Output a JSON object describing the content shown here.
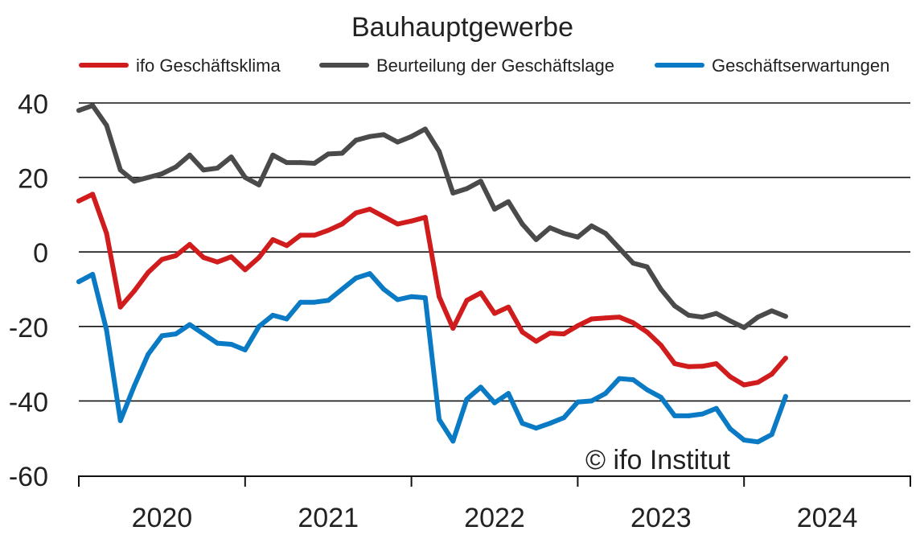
{
  "chart_data": {
    "type": "line",
    "title": "Bauhauptgewerbe",
    "watermark": "© ifo Institut",
    "ylim": [
      -60,
      40
    ],
    "yticks": [
      40,
      20,
      0,
      -20,
      -40,
      -60
    ],
    "year_labels": [
      "2020",
      "2021",
      "2022",
      "2023",
      "2024"
    ],
    "x_start": "2019-12",
    "xlim": [
      "2019-12",
      "2024-12"
    ],
    "grid": true,
    "legend_position": "top",
    "series": [
      {
        "name": "ifo Geschäftsklima",
        "color": "#d01c1c",
        "values": [
          13.7,
          15.5,
          5.0,
          -14.8,
          -10.5,
          -5.5,
          -2.0,
          -1.0,
          2.0,
          -1.5,
          -2.7,
          -1.3,
          -4.8,
          -1.5,
          3.3,
          1.7,
          4.5,
          4.5,
          5.8,
          7.5,
          10.5,
          11.5,
          9.5,
          7.5,
          8.3,
          9.3,
          -12.0,
          -20.5,
          -13.0,
          -11.0,
          -16.5,
          -14.8,
          -21.5,
          -24.0,
          -21.8,
          -22.0,
          -19.8,
          -18.0,
          -17.7,
          -17.5,
          -19.0,
          -21.5,
          -25.0,
          -30.0,
          -30.8,
          -30.7,
          -30.0,
          -33.5,
          -35.7,
          -35.0,
          -32.8,
          -28.5
        ]
      },
      {
        "name": "Beurteilung der Geschäftslage",
        "color": "#4a4a4a",
        "values": [
          38.0,
          39.3,
          34.0,
          22.0,
          19.0,
          20.0,
          21.0,
          22.8,
          26.0,
          22.0,
          22.5,
          25.5,
          20.0,
          18.0,
          26.0,
          24.0,
          24.0,
          23.8,
          26.3,
          26.5,
          30.0,
          31.0,
          31.5,
          29.5,
          31.0,
          33.0,
          27.0,
          15.8,
          17.0,
          19.0,
          11.5,
          13.5,
          7.5,
          3.3,
          6.5,
          5.0,
          4.0,
          7.0,
          5.0,
          1.0,
          -3.0,
          -4.0,
          -10.0,
          -14.5,
          -17.0,
          -17.5,
          -16.5,
          -18.5,
          -20.3,
          -17.5,
          -15.8,
          -17.3
        ]
      },
      {
        "name": "Geschäftserwartungen",
        "color": "#0a7ac4",
        "values": [
          -8.0,
          -6.0,
          -21.0,
          -45.3,
          -36.0,
          -27.5,
          -22.5,
          -22.0,
          -19.5,
          -22.0,
          -24.5,
          -24.8,
          -26.3,
          -20.0,
          -17.0,
          -18.0,
          -13.5,
          -13.5,
          -13.0,
          -10.0,
          -7.0,
          -5.8,
          -10.0,
          -12.8,
          -12.0,
          -12.3,
          -45.0,
          -50.8,
          -39.5,
          -36.3,
          -40.5,
          -38.0,
          -46.0,
          -47.3,
          -46.0,
          -44.5,
          -40.3,
          -40.0,
          -38.0,
          -34.0,
          -34.3,
          -37.0,
          -39.0,
          -44.0,
          -44.0,
          -43.5,
          -42.0,
          -47.5,
          -50.5,
          -51.0,
          -49.0,
          -38.8
        ]
      }
    ]
  }
}
